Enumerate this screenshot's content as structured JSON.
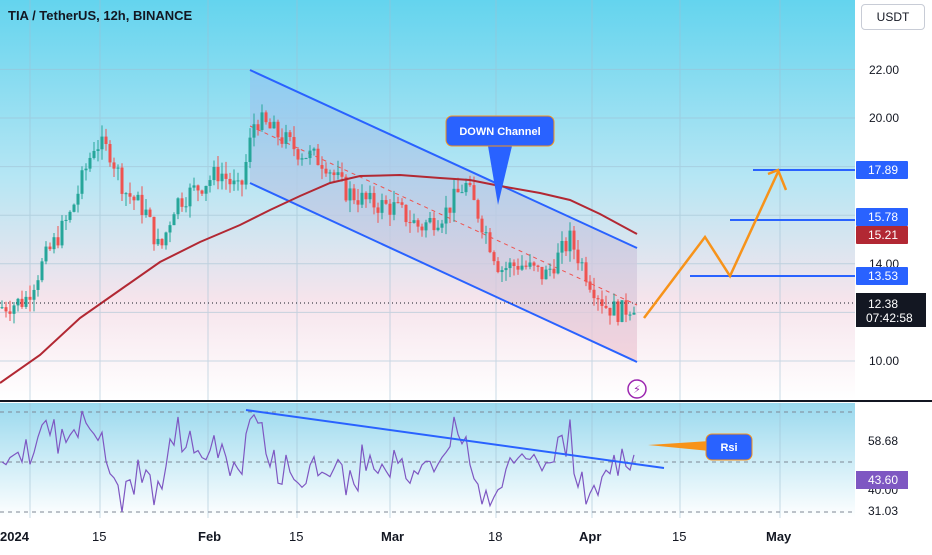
{
  "header": {
    "title": "TIA / TetherUS, 12h, BINANCE",
    "currency_button": "USDT"
  },
  "chart_data": {
    "type": "candlestick",
    "symbol": "TIA / TetherUS",
    "interval": "12h",
    "exchange": "BINANCE",
    "price_axis_ticks": [
      "22.00",
      "20.00",
      "17.89",
      "15.78",
      "15.21",
      "14.00",
      "13.53",
      "12.38",
      "10.00"
    ],
    "time_axis_ticks": [
      "2024",
      "15",
      "Feb",
      "15",
      "Mar",
      "18",
      "Apr",
      "15",
      "May"
    ],
    "last_price": "12.38",
    "countdown": "07:42:58",
    "ma_value": "15.21",
    "target_levels": [
      "13.53",
      "15.78",
      "17.89"
    ],
    "annotations": [
      "DOWN Channel",
      "Rsi"
    ],
    "rsi_ticks": [
      "58.68",
      "43.60",
      "40.00",
      "31.03"
    ],
    "rsi_value": "43.60",
    "colors": {
      "up": "#26a69a",
      "down": "#ef5350",
      "ma": "#b22833",
      "channel": "#2962ff",
      "projection": "#f7931a",
      "rsi": "#7e57c2",
      "label_bg": "#2962ff",
      "ma_label_bg": "#b22833",
      "rsi_label_bg": "#7e57c2"
    }
  }
}
